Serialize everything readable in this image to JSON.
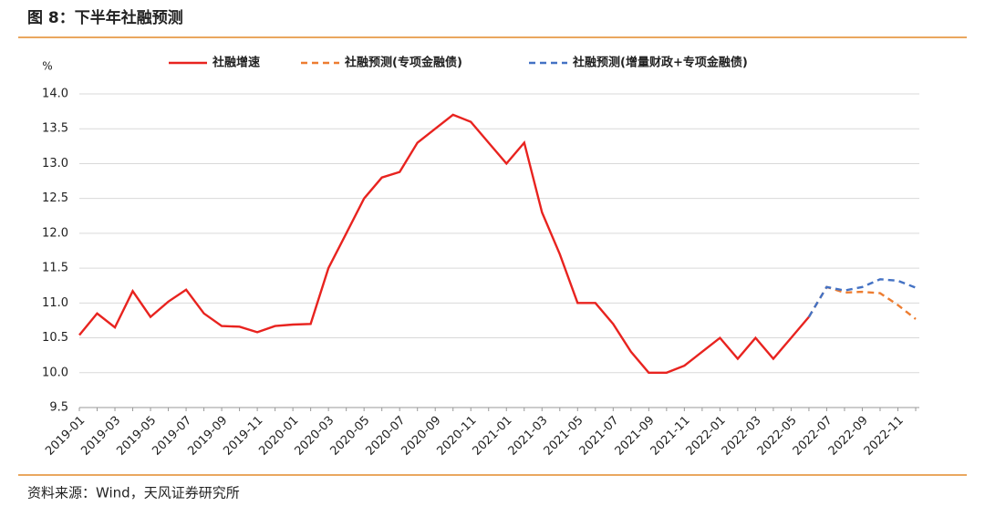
{
  "chart_data": {
    "type": "line",
    "title": "图 8：下半年社融预测",
    "y_label": "%",
    "source": "资料来源：Wind，天风证券研究所",
    "categories": [
      "2019-01",
      null,
      "2019-03",
      null,
      "2019-05",
      null,
      "2019-07",
      null,
      "2019-09",
      null,
      "2019-11",
      null,
      "2020-01",
      null,
      "2020-03",
      null,
      "2020-05",
      null,
      "2020-07",
      null,
      "2020-09",
      null,
      "2020-11",
      null,
      "2021-01",
      null,
      "2021-03",
      null,
      "2021-05",
      null,
      "2021-07",
      null,
      "2021-09",
      null,
      "2021-11",
      null,
      "2022-01",
      null,
      "2022-03",
      null,
      "2022-05",
      null,
      "2022-07",
      null,
      "2022-09",
      null,
      "2022-11",
      null
    ],
    "series": [
      {
        "name": "社融增速",
        "color": "#e8231f",
        "dashed": false,
        "values": [
          10.54,
          10.85,
          10.65,
          11.17,
          10.8,
          11.02,
          11.19,
          10.85,
          10.67,
          10.66,
          10.58,
          10.67,
          10.69,
          10.7,
          11.5,
          12.0,
          12.5,
          12.8,
          12.88,
          13.3,
          13.5,
          13.7,
          13.6,
          13.3,
          13.0,
          13.3,
          12.3,
          11.7,
          11.0,
          11.0,
          10.7,
          10.3,
          10.0,
          10.0,
          10.1,
          10.3,
          10.5,
          10.2,
          10.5,
          10.2,
          10.5,
          10.8,
          null,
          null,
          null,
          null,
          null,
          null
        ]
      },
      {
        "name": "社融预测(专项金融债)",
        "color": "#ed7d31",
        "dashed": true,
        "values": [
          null,
          null,
          null,
          null,
          null,
          null,
          null,
          null,
          null,
          null,
          null,
          null,
          null,
          null,
          null,
          null,
          null,
          null,
          null,
          null,
          null,
          null,
          null,
          null,
          null,
          null,
          null,
          null,
          null,
          null,
          null,
          null,
          null,
          null,
          null,
          null,
          null,
          null,
          null,
          null,
          null,
          10.8,
          11.23,
          11.15,
          11.16,
          11.14,
          10.97,
          10.77
        ]
      },
      {
        "name": "社融预测(增量财政+专项金融债)",
        "color": "#4472c4",
        "dashed": true,
        "values": [
          null,
          null,
          null,
          null,
          null,
          null,
          null,
          null,
          null,
          null,
          null,
          null,
          null,
          null,
          null,
          null,
          null,
          null,
          null,
          null,
          null,
          null,
          null,
          null,
          null,
          null,
          null,
          null,
          null,
          null,
          null,
          null,
          null,
          null,
          null,
          null,
          null,
          null,
          null,
          null,
          null,
          10.8,
          11.23,
          11.18,
          11.23,
          11.34,
          11.32,
          11.22
        ]
      }
    ],
    "ylim": [
      9.5,
      14
    ],
    "yticks": [
      9.5,
      {
        "value": 10,
        "label": "10.0"
      },
      10.5,
      {
        "value": 11,
        "label": "11.0"
      },
      11.5,
      {
        "value": 12,
        "label": "12.0"
      },
      12.5,
      {
        "value": 13,
        "label": "13.0"
      },
      13.5,
      {
        "value": 14,
        "label": "14.0"
      }
    ],
    "grid": true
  }
}
